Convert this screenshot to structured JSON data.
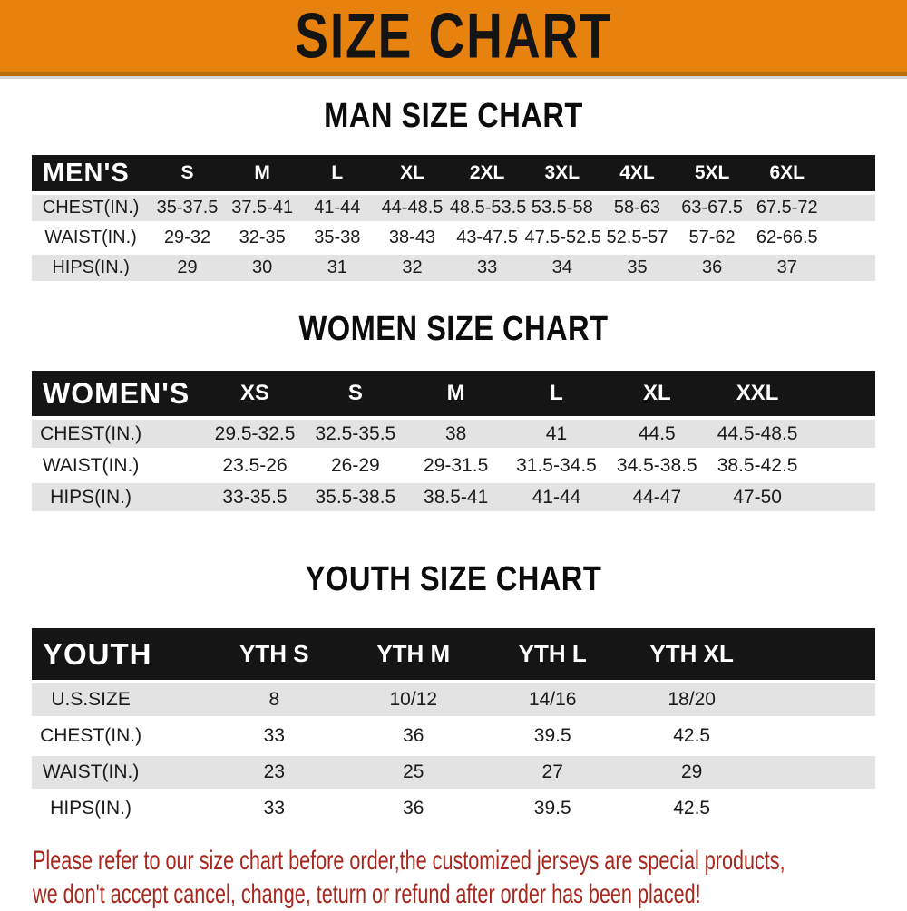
{
  "banner": {
    "title": "SIZE CHART",
    "bg_color": "#E8820E",
    "text_color": "#141414"
  },
  "colors": {
    "header_bar": "#151515",
    "row_stripe": "#e3e3e3",
    "disclaimer_red": "#a7271d"
  },
  "sections": [
    {
      "key": "man",
      "heading": "MAN SIZE CHART",
      "table": {
        "header_label": "MEN'S",
        "columns": [
          "S",
          "M",
          "L",
          "XL",
          "2XL",
          "3XL",
          "4XL",
          "5XL",
          "6XL"
        ],
        "rows": [
          {
            "label": "CHEST(IN.)",
            "values": [
              "35-37.5",
              "37.5-41",
              "41-44",
              "44-48.5",
              "48.5-53.5",
              "53.5-58",
              "58-63",
              "63-67.5",
              "67.5-72"
            ]
          },
          {
            "label": "WAIST(IN.)",
            "values": [
              "29-32",
              "32-35",
              "35-38",
              "38-43",
              "43-47.5",
              "47.5-52.5",
              "52.5-57",
              "57-62",
              "62-66.5"
            ]
          },
          {
            "label": "HIPS(IN.)",
            "values": [
              "29",
              "30",
              "31",
              "32",
              "33",
              "34",
              "35",
              "36",
              "37"
            ]
          }
        ]
      }
    },
    {
      "key": "women",
      "heading": "WOMEN SIZE CHART",
      "table": {
        "header_label": "WOMEN'S",
        "columns": [
          "XS",
          "S",
          "M",
          "L",
          "XL",
          "XXL"
        ],
        "rows": [
          {
            "label": "CHEST(IN.)",
            "values": [
              "29.5-32.5",
              "32.5-35.5",
              "38",
              "41",
              "44.5",
              "44.5-48.5"
            ]
          },
          {
            "label": "WAIST(IN.)",
            "values": [
              "23.5-26",
              "26-29",
              "29-31.5",
              "31.5-34.5",
              "34.5-38.5",
              "38.5-42.5"
            ]
          },
          {
            "label": "HIPS(IN.)",
            "values": [
              "33-35.5",
              "35.5-38.5",
              "38.5-41",
              "41-44",
              "44-47",
              "47-50"
            ]
          }
        ]
      }
    },
    {
      "key": "youth",
      "heading": "YOUTH SIZE CHART",
      "table": {
        "header_label": "YOUTH",
        "columns": [
          "YTH S",
          "YTH M",
          "YTH L",
          "YTH XL"
        ],
        "rows": [
          {
            "label": "U.S.SIZE",
            "values": [
              "8",
              "10/12",
              "14/16",
              "18/20"
            ]
          },
          {
            "label": "CHEST(IN.)",
            "values": [
              "33",
              "36",
              "39.5",
              "42.5"
            ]
          },
          {
            "label": "WAIST(IN.)",
            "values": [
              "23",
              "25",
              "27",
              "29"
            ]
          },
          {
            "label": "HIPS(IN.)",
            "values": [
              "33",
              "36",
              "39.5",
              "42.5"
            ]
          }
        ]
      }
    }
  ],
  "disclaimer": {
    "line1": "Please refer to our size chart before order,the customized jerseys are special products,",
    "line2": "we don't accept cancel, change, teturn or refund after order has been placed!"
  }
}
